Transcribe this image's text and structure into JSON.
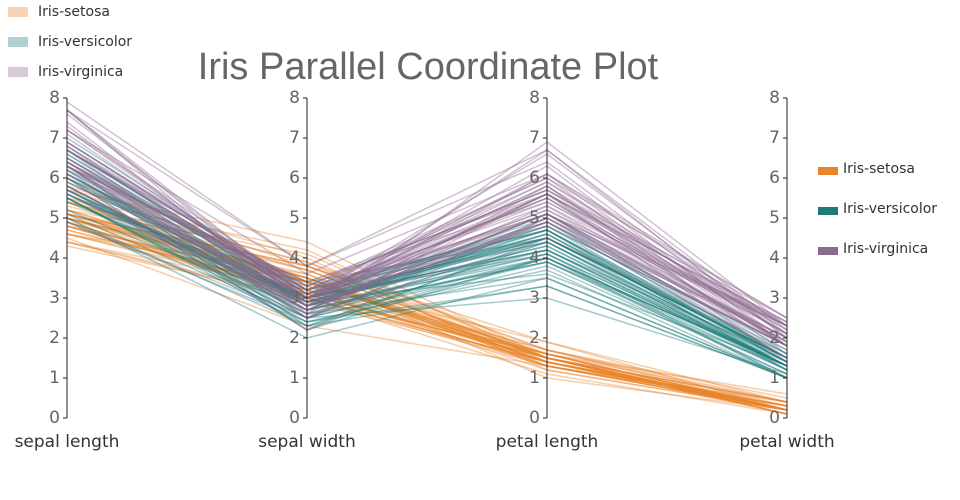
{
  "chart_data": {
    "type": "parallel",
    "title": "Iris Parallel Coordinate Plot",
    "dimensions": [
      "sepal length",
      "sepal width",
      "petal length",
      "petal width"
    ],
    "ylim": [
      0,
      8
    ],
    "yticks": [
      0,
      1,
      2,
      3,
      4,
      5,
      6,
      7,
      8
    ],
    "legend": "right",
    "series": [
      {
        "name": "Iris-setosa",
        "color": "#e8852a",
        "values": [
          [
            5.1,
            3.5,
            1.4,
            0.2
          ],
          [
            4.9,
            3.0,
            1.4,
            0.2
          ],
          [
            4.7,
            3.2,
            1.3,
            0.2
          ],
          [
            4.6,
            3.1,
            1.5,
            0.2
          ],
          [
            5.0,
            3.6,
            1.4,
            0.2
          ],
          [
            5.4,
            3.9,
            1.7,
            0.4
          ],
          [
            4.6,
            3.4,
            1.4,
            0.3
          ],
          [
            5.0,
            3.4,
            1.5,
            0.2
          ],
          [
            4.4,
            2.9,
            1.4,
            0.2
          ],
          [
            4.9,
            3.1,
            1.5,
            0.1
          ],
          [
            5.4,
            3.7,
            1.5,
            0.2
          ],
          [
            4.8,
            3.4,
            1.6,
            0.2
          ],
          [
            4.8,
            3.0,
            1.4,
            0.1
          ],
          [
            4.3,
            3.0,
            1.1,
            0.1
          ],
          [
            5.8,
            4.0,
            1.2,
            0.2
          ],
          [
            5.7,
            4.4,
            1.5,
            0.4
          ],
          [
            5.4,
            3.9,
            1.3,
            0.4
          ],
          [
            5.1,
            3.5,
            1.4,
            0.3
          ],
          [
            5.7,
            3.8,
            1.7,
            0.3
          ],
          [
            5.1,
            3.8,
            1.5,
            0.3
          ],
          [
            5.4,
            3.4,
            1.7,
            0.2
          ],
          [
            5.1,
            3.7,
            1.5,
            0.4
          ],
          [
            4.6,
            3.6,
            1.0,
            0.2
          ],
          [
            5.1,
            3.3,
            1.7,
            0.5
          ],
          [
            4.8,
            3.4,
            1.9,
            0.2
          ],
          [
            5.0,
            3.0,
            1.6,
            0.2
          ],
          [
            5.0,
            3.4,
            1.6,
            0.4
          ],
          [
            5.2,
            3.5,
            1.5,
            0.2
          ],
          [
            5.2,
            3.4,
            1.4,
            0.2
          ],
          [
            4.7,
            3.2,
            1.6,
            0.2
          ],
          [
            4.8,
            3.1,
            1.6,
            0.2
          ],
          [
            5.4,
            3.4,
            1.5,
            0.4
          ],
          [
            5.2,
            4.1,
            1.5,
            0.1
          ],
          [
            5.5,
            4.2,
            1.4,
            0.2
          ],
          [
            4.9,
            3.1,
            1.5,
            0.1
          ],
          [
            5.0,
            3.2,
            1.2,
            0.2
          ],
          [
            5.5,
            3.5,
            1.3,
            0.2
          ],
          [
            4.9,
            3.1,
            1.5,
            0.1
          ],
          [
            4.4,
            3.0,
            1.3,
            0.2
          ],
          [
            5.1,
            3.4,
            1.5,
            0.2
          ],
          [
            5.0,
            3.5,
            1.3,
            0.3
          ],
          [
            4.5,
            2.3,
            1.3,
            0.3
          ],
          [
            4.4,
            3.2,
            1.3,
            0.2
          ],
          [
            5.0,
            3.5,
            1.6,
            0.6
          ],
          [
            5.1,
            3.8,
            1.9,
            0.4
          ],
          [
            4.8,
            3.0,
            1.4,
            0.3
          ],
          [
            5.1,
            3.8,
            1.6,
            0.2
          ],
          [
            4.6,
            3.2,
            1.4,
            0.2
          ],
          [
            5.3,
            3.7,
            1.5,
            0.2
          ],
          [
            5.0,
            3.3,
            1.4,
            0.2
          ]
        ]
      },
      {
        "name": "Iris-versicolor",
        "color": "#1f7a7a",
        "values": [
          [
            7.0,
            3.2,
            4.7,
            1.4
          ],
          [
            6.4,
            3.2,
            4.5,
            1.5
          ],
          [
            6.9,
            3.1,
            4.9,
            1.5
          ],
          [
            5.5,
            2.3,
            4.0,
            1.3
          ],
          [
            6.5,
            2.8,
            4.6,
            1.5
          ],
          [
            5.7,
            2.8,
            4.5,
            1.3
          ],
          [
            6.3,
            3.3,
            4.7,
            1.6
          ],
          [
            4.9,
            2.4,
            3.3,
            1.0
          ],
          [
            6.6,
            2.9,
            4.6,
            1.3
          ],
          [
            5.2,
            2.7,
            3.9,
            1.4
          ],
          [
            5.0,
            2.0,
            3.5,
            1.0
          ],
          [
            5.9,
            3.0,
            4.2,
            1.5
          ],
          [
            6.0,
            2.2,
            4.0,
            1.0
          ],
          [
            6.1,
            2.9,
            4.7,
            1.4
          ],
          [
            5.6,
            2.9,
            3.6,
            1.3
          ],
          [
            6.7,
            3.1,
            4.4,
            1.4
          ],
          [
            5.6,
            3.0,
            4.5,
            1.5
          ],
          [
            5.8,
            2.7,
            4.1,
            1.0
          ],
          [
            6.2,
            2.2,
            4.5,
            1.5
          ],
          [
            5.6,
            2.5,
            3.9,
            1.1
          ],
          [
            5.9,
            3.2,
            4.8,
            1.8
          ],
          [
            6.1,
            2.8,
            4.0,
            1.3
          ],
          [
            6.3,
            2.5,
            4.9,
            1.5
          ],
          [
            6.1,
            2.8,
            4.7,
            1.2
          ],
          [
            6.4,
            2.9,
            4.3,
            1.3
          ],
          [
            6.6,
            3.0,
            4.4,
            1.4
          ],
          [
            6.8,
            2.8,
            4.8,
            1.4
          ],
          [
            6.7,
            3.0,
            5.0,
            1.7
          ],
          [
            6.0,
            2.9,
            4.5,
            1.5
          ],
          [
            5.7,
            2.6,
            3.5,
            1.0
          ],
          [
            5.5,
            2.4,
            3.8,
            1.1
          ],
          [
            5.5,
            2.4,
            3.7,
            1.0
          ],
          [
            5.8,
            2.7,
            3.9,
            1.2
          ],
          [
            6.0,
            2.7,
            5.1,
            1.6
          ],
          [
            5.4,
            3.0,
            4.5,
            1.5
          ],
          [
            6.0,
            3.4,
            4.5,
            1.6
          ],
          [
            6.7,
            3.1,
            4.7,
            1.5
          ],
          [
            6.3,
            2.3,
            4.4,
            1.3
          ],
          [
            5.6,
            3.0,
            4.1,
            1.3
          ],
          [
            5.5,
            2.5,
            4.0,
            1.3
          ],
          [
            5.5,
            2.6,
            4.4,
            1.2
          ],
          [
            6.1,
            3.0,
            4.6,
            1.4
          ],
          [
            5.8,
            2.6,
            4.0,
            1.2
          ],
          [
            5.0,
            2.3,
            3.3,
            1.0
          ],
          [
            5.6,
            2.7,
            4.2,
            1.3
          ],
          [
            5.7,
            3.0,
            4.2,
            1.2
          ],
          [
            5.7,
            2.9,
            4.2,
            1.3
          ],
          [
            6.2,
            2.9,
            4.3,
            1.3
          ],
          [
            5.1,
            2.5,
            3.0,
            1.1
          ],
          [
            5.7,
            2.8,
            4.1,
            1.3
          ]
        ]
      },
      {
        "name": "Iris-virginica",
        "color": "#8c6a8f",
        "values": [
          [
            6.3,
            3.3,
            6.0,
            2.5
          ],
          [
            5.8,
            2.7,
            5.1,
            1.9
          ],
          [
            7.1,
            3.0,
            5.9,
            2.1
          ],
          [
            6.3,
            2.9,
            5.6,
            1.8
          ],
          [
            6.5,
            3.0,
            5.8,
            2.2
          ],
          [
            7.6,
            3.0,
            6.6,
            2.1
          ],
          [
            4.9,
            2.5,
            4.5,
            1.7
          ],
          [
            7.3,
            2.9,
            6.3,
            1.8
          ],
          [
            6.7,
            2.5,
            5.8,
            1.8
          ],
          [
            7.2,
            3.6,
            6.1,
            2.5
          ],
          [
            6.5,
            3.2,
            5.1,
            2.0
          ],
          [
            6.4,
            2.7,
            5.3,
            1.9
          ],
          [
            6.8,
            3.0,
            5.5,
            2.1
          ],
          [
            5.7,
            2.5,
            5.0,
            2.0
          ],
          [
            5.8,
            2.8,
            5.1,
            2.4
          ],
          [
            6.4,
            3.2,
            5.3,
            2.3
          ],
          [
            6.5,
            3.0,
            5.5,
            1.8
          ],
          [
            7.7,
            3.8,
            6.7,
            2.2
          ],
          [
            7.7,
            2.6,
            6.9,
            2.3
          ],
          [
            6.0,
            2.2,
            5.0,
            1.5
          ],
          [
            6.9,
            3.2,
            5.7,
            2.3
          ],
          [
            5.6,
            2.8,
            4.9,
            2.0
          ],
          [
            7.7,
            2.8,
            6.7,
            2.0
          ],
          [
            6.3,
            2.7,
            4.9,
            1.8
          ],
          [
            6.7,
            3.3,
            5.7,
            2.1
          ],
          [
            7.2,
            3.2,
            6.0,
            1.8
          ],
          [
            6.2,
            2.8,
            4.8,
            1.8
          ],
          [
            6.1,
            3.0,
            4.9,
            1.8
          ],
          [
            6.4,
            2.8,
            5.6,
            2.1
          ],
          [
            7.2,
            3.0,
            5.8,
            1.6
          ],
          [
            7.4,
            2.8,
            6.1,
            1.9
          ],
          [
            7.9,
            3.8,
            6.4,
            2.0
          ],
          [
            6.4,
            2.8,
            5.6,
            2.2
          ],
          [
            6.3,
            2.8,
            5.1,
            1.5
          ],
          [
            6.1,
            2.6,
            5.6,
            1.4
          ],
          [
            7.7,
            3.0,
            6.1,
            2.3
          ],
          [
            6.3,
            3.4,
            5.6,
            2.4
          ],
          [
            6.4,
            3.1,
            5.5,
            1.8
          ],
          [
            6.0,
            3.0,
            4.8,
            1.8
          ],
          [
            6.9,
            3.1,
            5.4,
            2.1
          ],
          [
            6.7,
            3.1,
            5.6,
            2.4
          ],
          [
            6.9,
            3.1,
            5.1,
            2.3
          ],
          [
            5.8,
            2.7,
            5.1,
            1.9
          ],
          [
            6.8,
            3.2,
            5.9,
            2.3
          ],
          [
            6.7,
            3.3,
            5.7,
            2.5
          ],
          [
            6.7,
            3.0,
            5.2,
            2.3
          ],
          [
            6.3,
            2.5,
            5.0,
            1.9
          ],
          [
            6.5,
            3.0,
            5.2,
            2.0
          ],
          [
            6.2,
            3.4,
            5.4,
            2.3
          ],
          [
            5.9,
            3.0,
            5.1,
            1.8
          ]
        ]
      }
    ]
  }
}
